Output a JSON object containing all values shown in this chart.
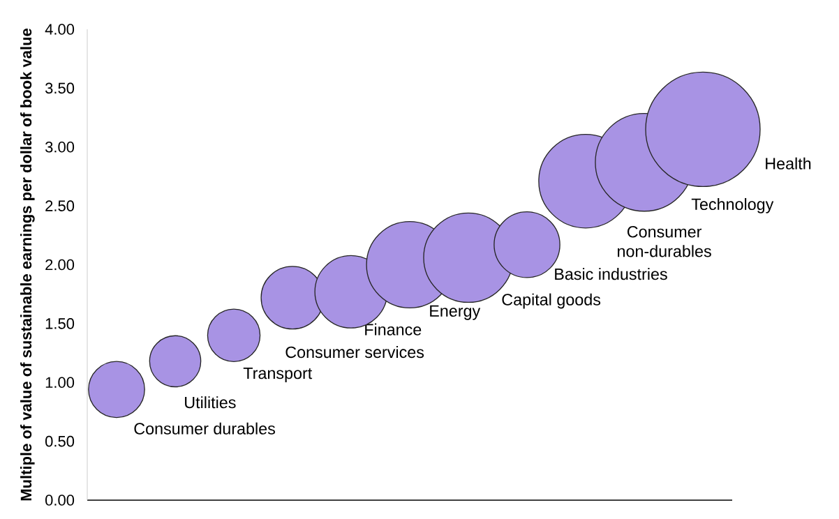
{
  "chart_data": {
    "type": "bubble",
    "ylabel": "Multiple of value of sustainable earnings per dollar of book value",
    "categories": [
      null,
      null,
      null,
      null,
      null,
      null,
      null,
      null,
      null,
      null,
      null
    ],
    "series": [
      {
        "name": "Consumer durables",
        "color": "#a893e4",
        "values": [
          0.94,
          null,
          null,
          null,
          null,
          null,
          null,
          null,
          null,
          null,
          null
        ],
        "sizes": [
          0.24,
          null,
          null,
          null,
          null,
          null,
          null,
          null,
          null,
          null,
          null
        ]
      },
      {
        "name": "Utilities",
        "color": "#a893e4",
        "values": [
          null,
          1.18,
          null,
          null,
          null,
          null,
          null,
          null,
          null,
          null,
          null
        ],
        "sizes": [
          null,
          0.2,
          null,
          null,
          null,
          null,
          null,
          null,
          null,
          null,
          null
        ]
      },
      {
        "name": "Transport",
        "color": "#a893e4",
        "values": [
          null,
          null,
          1.4,
          null,
          null,
          null,
          null,
          null,
          null,
          null,
          null
        ],
        "sizes": [
          null,
          null,
          0.21,
          null,
          null,
          null,
          null,
          null,
          null,
          null,
          null
        ]
      },
      {
        "name": "Consumer services",
        "color": "#a893e4",
        "values": [
          null,
          null,
          null,
          1.72,
          null,
          null,
          null,
          null,
          null,
          null,
          null
        ],
        "sizes": [
          null,
          null,
          null,
          0.3,
          null,
          null,
          null,
          null,
          null,
          null,
          null
        ]
      },
      {
        "name": "Finance",
        "color": "#a893e4",
        "values": [
          null,
          null,
          null,
          null,
          1.77,
          null,
          null,
          null,
          null,
          null,
          null
        ],
        "sizes": [
          null,
          null,
          null,
          null,
          0.4,
          null,
          null,
          null,
          null,
          null,
          null
        ]
      },
      {
        "name": "Energy",
        "color": "#a893e4",
        "values": [
          null,
          null,
          null,
          null,
          null,
          2.0,
          null,
          null,
          null,
          null,
          null
        ],
        "sizes": [
          null,
          null,
          null,
          null,
          null,
          0.57,
          null,
          null,
          null,
          null,
          null
        ]
      },
      {
        "name": "Capital goods",
        "color": "#a893e4",
        "values": [
          null,
          null,
          null,
          null,
          null,
          null,
          2.06,
          null,
          null,
          null,
          null
        ],
        "sizes": [
          null,
          null,
          null,
          null,
          null,
          null,
          0.61,
          null,
          null,
          null,
          null
        ]
      },
      {
        "name": "Basic industries",
        "color": "#a893e4",
        "values": [
          null,
          null,
          null,
          null,
          null,
          null,
          null,
          2.17,
          null,
          null,
          null
        ],
        "sizes": [
          null,
          null,
          null,
          null,
          null,
          null,
          null,
          0.33,
          null,
          null,
          null
        ]
      },
      {
        "name": "Consumer non-durables",
        "color": "#a893e4",
        "values": [
          null,
          null,
          null,
          null,
          null,
          null,
          null,
          null,
          2.71,
          null,
          null
        ],
        "sizes": [
          null,
          null,
          null,
          null,
          null,
          null,
          null,
          null,
          0.67,
          null,
          null
        ]
      },
      {
        "name": "Technology",
        "color": "#a893e4",
        "values": [
          null,
          null,
          null,
          null,
          null,
          null,
          null,
          null,
          null,
          2.87,
          null
        ],
        "sizes": [
          null,
          null,
          null,
          null,
          null,
          null,
          null,
          null,
          null,
          0.73,
          null
        ]
      },
      {
        "name": "Health",
        "color": "#a893e4",
        "values": [
          null,
          null,
          null,
          null,
          null,
          null,
          null,
          null,
          null,
          null,
          3.15
        ],
        "sizes": [
          null,
          null,
          null,
          null,
          null,
          null,
          null,
          null,
          null,
          null,
          1
        ]
      }
    ],
    "ylim": [
      0,
      4
    ],
    "yticks": [
      {
        "value": 0,
        "label": "0.00"
      },
      {
        "value": 0.5,
        "label": "0.50"
      },
      {
        "value": 1,
        "label": "1.00"
      },
      {
        "value": 1.5,
        "label": "1.50"
      },
      {
        "value": 2,
        "label": "2.00"
      },
      {
        "value": 2.5,
        "label": "2.50"
      },
      {
        "value": 3,
        "label": "3.00"
      },
      {
        "value": 3.5,
        "label": "3.50"
      },
      {
        "value": 4,
        "label": "4.00"
      }
    ],
    "tick_labels": "y"
  }
}
